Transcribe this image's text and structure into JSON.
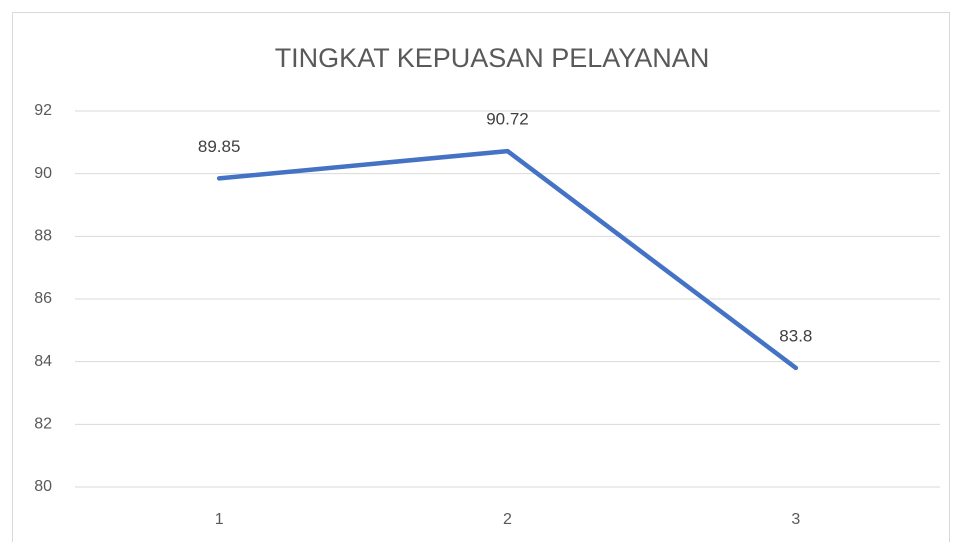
{
  "chart_data": {
    "type": "line",
    "title": "TINGKAT KEPUASAN PELAYANAN",
    "categories": [
      "1",
      "2",
      "3"
    ],
    "values": [
      89.85,
      90.72,
      83.8
    ],
    "color": "#4472c4",
    "ylim": [
      80,
      92
    ],
    "yticks": [
      80,
      82,
      84,
      86,
      88,
      90,
      92
    ],
    "grid": true,
    "data_labels": true
  }
}
